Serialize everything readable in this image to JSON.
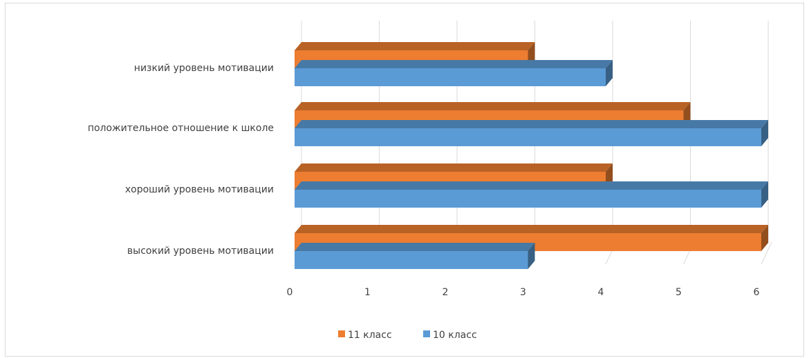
{
  "chart_data": {
    "type": "bar",
    "orientation": "horizontal",
    "style": "3d",
    "categories": [
      "низкий уровень мотивации",
      "положительное отношение к школе",
      "хороший уровень мотивации",
      "высокий уровень мотивации"
    ],
    "series": [
      {
        "name": "11 класс",
        "color": "#ED7D31",
        "values": [
          3,
          5,
          4,
          6
        ]
      },
      {
        "name": "10 класс",
        "color": "#5B9BD5",
        "values": [
          4,
          6,
          6,
          3
        ]
      }
    ],
    "xlim": [
      0,
      6
    ],
    "x_ticks": [
      "0",
      "1",
      "2",
      "3",
      "4",
      "5",
      "6"
    ],
    "grid": true,
    "legend_position": "bottom",
    "title": "",
    "xlabel": "",
    "ylabel": ""
  }
}
